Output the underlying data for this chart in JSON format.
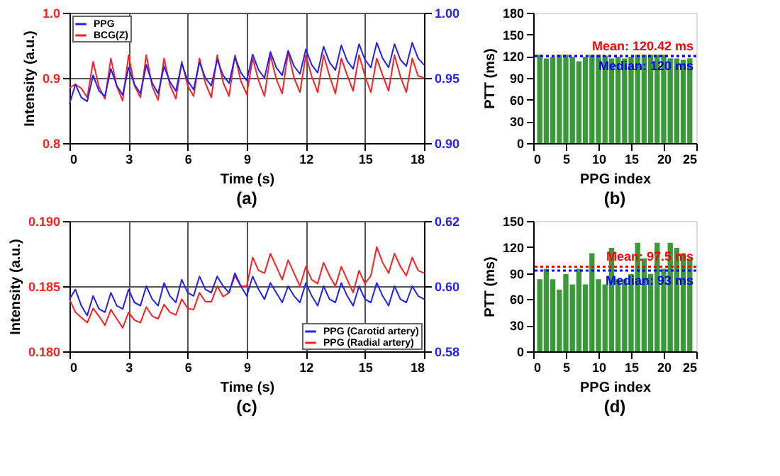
{
  "chart_data": [
    {
      "type": "line",
      "annotations": [
        "(a)"
      ],
      "xlabel": "Time (s)",
      "ylabel": "Intensity (a.u.)",
      "xlim": [
        0,
        18
      ],
      "xticks": [
        0,
        3,
        6,
        9,
        12,
        15,
        18
      ],
      "ylim": [
        0.8,
        1.0
      ],
      "yticks": [
        0.8,
        0.9,
        {
          "value": 1.0,
          "label": "1.0"
        }
      ],
      "y2lim": [
        0.9,
        1.0
      ],
      "y2ticks": [
        {
          "value": 0.9,
          "label": "0.90"
        },
        0.95,
        {
          "value": 1.0,
          "label": "1.00"
        }
      ],
      "grid": true,
      "legend": "top left",
      "x": [
        0,
        0.3,
        0.6,
        0.9,
        1.2,
        1.5,
        1.8,
        2.1,
        2.4,
        2.7,
        3.0,
        3.3,
        3.6,
        3.9,
        4.2,
        4.5,
        4.8,
        5.1,
        5.4,
        5.7,
        6.0,
        6.3,
        6.6,
        6.9,
        7.2,
        7.5,
        7.8,
        8.1,
        8.4,
        8.7,
        9.0,
        9.3,
        9.6,
        9.9,
        10.2,
        10.5,
        10.8,
        11.1,
        11.4,
        11.7,
        12.0,
        12.3,
        12.6,
        12.9,
        13.2,
        13.5,
        13.8,
        14.1,
        14.4,
        14.7,
        15.0,
        15.3,
        15.6,
        15.9,
        16.2,
        16.5,
        16.8,
        17.1,
        17.4,
        17.7,
        18.0
      ],
      "series": [
        {
          "name": "PPG",
          "color": "#1f1fff",
          "axis": "y2",
          "values": [
            0.93,
            0.945,
            0.935,
            0.932,
            0.952,
            0.94,
            0.936,
            0.957,
            0.944,
            0.937,
            0.958,
            0.945,
            0.938,
            0.96,
            0.946,
            0.938,
            0.959,
            0.947,
            0.94,
            0.961,
            0.948,
            0.941,
            0.962,
            0.95,
            0.944,
            0.964,
            0.952,
            0.946,
            0.966,
            0.954,
            0.948,
            0.968,
            0.956,
            0.95,
            0.97,
            0.958,
            0.952,
            0.971,
            0.959,
            0.953,
            0.972,
            0.96,
            0.954,
            0.974,
            0.962,
            0.956,
            0.975,
            0.963,
            0.957,
            0.976,
            0.964,
            0.958,
            0.977,
            0.965,
            0.958,
            0.976,
            0.964,
            0.959,
            0.977,
            0.965,
            0.96
          ]
        },
        {
          "name": "BCG(Z)",
          "color": "#ff1f1f",
          "values": [
            0.885,
            0.89,
            0.884,
            0.87,
            0.925,
            0.886,
            0.868,
            0.93,
            0.887,
            0.865,
            0.935,
            0.888,
            0.87,
            0.935,
            0.887,
            0.866,
            0.93,
            0.889,
            0.868,
            0.925,
            0.888,
            0.872,
            0.93,
            0.892,
            0.87,
            0.935,
            0.893,
            0.872,
            0.935,
            0.895,
            0.875,
            0.93,
            0.896,
            0.872,
            0.935,
            0.898,
            0.876,
            0.94,
            0.9,
            0.878,
            0.935,
            0.902,
            0.878,
            0.935,
            0.903,
            0.876,
            0.93,
            0.904,
            0.88,
            0.935,
            0.903,
            0.878,
            0.93,
            0.904,
            0.88,
            0.935,
            0.902,
            0.878,
            0.93,
            0.903,
            0.9
          ]
        }
      ]
    },
    {
      "type": "bar",
      "annotations": [
        "(b)"
      ],
      "xlabel": "PPG index",
      "ylabel": "PTT (ms)",
      "xlim": [
        0,
        25
      ],
      "xticks": [
        0,
        5,
        10,
        15,
        20,
        25
      ],
      "ylim": [
        0,
        180
      ],
      "yticks": [
        0,
        30,
        60,
        90,
        120,
        150,
        180
      ],
      "color": "#3a9a3a",
      "x": [
        1,
        2,
        3,
        4,
        5,
        6,
        7,
        8,
        9,
        10,
        11,
        12,
        13,
        14,
        15,
        16,
        17,
        18,
        19,
        20,
        21,
        22,
        23,
        24
      ],
      "values": [
        122,
        117,
        119,
        122,
        122,
        119,
        113,
        119,
        122,
        122,
        121,
        117,
        119,
        117,
        119,
        122,
        122,
        122,
        122,
        122,
        117,
        117,
        115,
        117
      ],
      "ref_lines": [
        {
          "axis": "y",
          "value": 120.42,
          "label": "Mean: 120.42 ms",
          "color": "#ff0000",
          "line_style": "dotted"
        },
        {
          "axis": "y",
          "value": 120,
          "label": "Median: 120 ms",
          "color": "#0000ff",
          "line_style": "dotted"
        }
      ]
    },
    {
      "type": "line",
      "annotations": [
        "(c)"
      ],
      "xlabel": "Time (s)",
      "ylabel": "Intensity (a.u.)",
      "xlim": [
        0,
        18
      ],
      "xticks": [
        0,
        3,
        6,
        9,
        12,
        15,
        18
      ],
      "ylim": [
        0.18,
        0.19
      ],
      "yticks": [
        {
          "value": 0.18,
          "label": "0.180"
        },
        0.185,
        {
          "value": 0.19,
          "label": "0.190"
        }
      ],
      "y2lim": [
        0.58,
        0.62
      ],
      "y2ticks": [
        0.58,
        {
          "value": 0.6,
          "label": "0.60"
        },
        0.62
      ],
      "grid": true,
      "legend": "bottom right",
      "x": [
        0,
        0.3,
        0.6,
        0.9,
        1.2,
        1.5,
        1.8,
        2.1,
        2.4,
        2.7,
        3.0,
        3.3,
        3.6,
        3.9,
        4.2,
        4.5,
        4.8,
        5.1,
        5.4,
        5.7,
        6.0,
        6.3,
        6.6,
        6.9,
        7.2,
        7.5,
        7.8,
        8.1,
        8.4,
        8.7,
        9.0,
        9.3,
        9.6,
        9.9,
        10.2,
        10.5,
        10.8,
        11.1,
        11.4,
        11.7,
        12.0,
        12.3,
        12.6,
        12.9,
        13.2,
        13.5,
        13.8,
        14.1,
        14.4,
        14.7,
        15.0,
        15.3,
        15.6,
        15.9,
        16.2,
        16.5,
        16.8,
        17.1,
        17.4,
        17.7,
        18.0
      ],
      "series": [
        {
          "name": "PPG (Carotid artery)",
          "color": "#1f1fff",
          "axis": "y2",
          "values": [
            0.596,
            0.599,
            0.594,
            0.591,
            0.597,
            0.593,
            0.592,
            0.598,
            0.594,
            0.593,
            0.599,
            0.595,
            0.594,
            0.6,
            0.596,
            0.594,
            0.601,
            0.597,
            0.595,
            0.602,
            0.598,
            0.597,
            0.603,
            0.599,
            0.598,
            0.603,
            0.6,
            0.598,
            0.604,
            0.6,
            0.597,
            0.603,
            0.599,
            0.596,
            0.601,
            0.598,
            0.595,
            0.6,
            0.597,
            0.595,
            0.601,
            0.597,
            0.594,
            0.6,
            0.596,
            0.595,
            0.601,
            0.597,
            0.594,
            0.6,
            0.596,
            0.595,
            0.601,
            0.597,
            0.594,
            0.6,
            0.596,
            0.595,
            0.6,
            0.597,
            0.596
          ]
        },
        {
          "name": "PPG (Radial artery)",
          "color": "#ff1f1f",
          "values": [
            0.184,
            0.183,
            0.1826,
            0.1822,
            0.1833,
            0.1827,
            0.182,
            0.1832,
            0.1825,
            0.1818,
            0.183,
            0.1824,
            0.1822,
            0.1834,
            0.1827,
            0.1825,
            0.1836,
            0.183,
            0.1828,
            0.184,
            0.1833,
            0.1832,
            0.1845,
            0.1838,
            0.1838,
            0.185,
            0.1842,
            0.1845,
            0.1858,
            0.185,
            0.185,
            0.1872,
            0.1862,
            0.186,
            0.1875,
            0.1865,
            0.1855,
            0.187,
            0.186,
            0.185,
            0.1865,
            0.1855,
            0.1852,
            0.1868,
            0.1858,
            0.185,
            0.1865,
            0.1855,
            0.1845,
            0.1862,
            0.1852,
            0.1858,
            0.188,
            0.1868,
            0.186,
            0.1875,
            0.1865,
            0.1858,
            0.1872,
            0.1862,
            0.186
          ]
        }
      ]
    },
    {
      "type": "bar",
      "annotations": [
        "(d)"
      ],
      "xlabel": "PPG index",
      "ylabel": "PTT (ms)",
      "xlim": [
        0,
        25
      ],
      "xticks": [
        0,
        5,
        10,
        15,
        20,
        25
      ],
      "ylim": [
        0,
        150
      ],
      "yticks": [
        0,
        30,
        60,
        90,
        120,
        150
      ],
      "color": "#3a9a3a",
      "x": [
        1,
        2,
        3,
        4,
        5,
        6,
        7,
        8,
        9,
        10,
        11,
        12,
        13,
        14,
        15,
        16,
        17,
        18,
        19,
        20,
        21,
        22,
        23,
        24
      ],
      "values": [
        83,
        95,
        83,
        71,
        89,
        77,
        95,
        77,
        113,
        83,
        77,
        119,
        83,
        83,
        89,
        125,
        107,
        89,
        125,
        95,
        125,
        119,
        113,
        107
      ],
      "ref_lines": [
        {
          "axis": "y",
          "value": 97.5,
          "label": "Mean: 97.5 ms",
          "color": "#ff0000",
          "line_style": "dotted"
        },
        {
          "axis": "y",
          "value": 93,
          "label": "Median: 93 ms",
          "color": "#0000ff",
          "line_style": "dotted"
        }
      ]
    }
  ]
}
